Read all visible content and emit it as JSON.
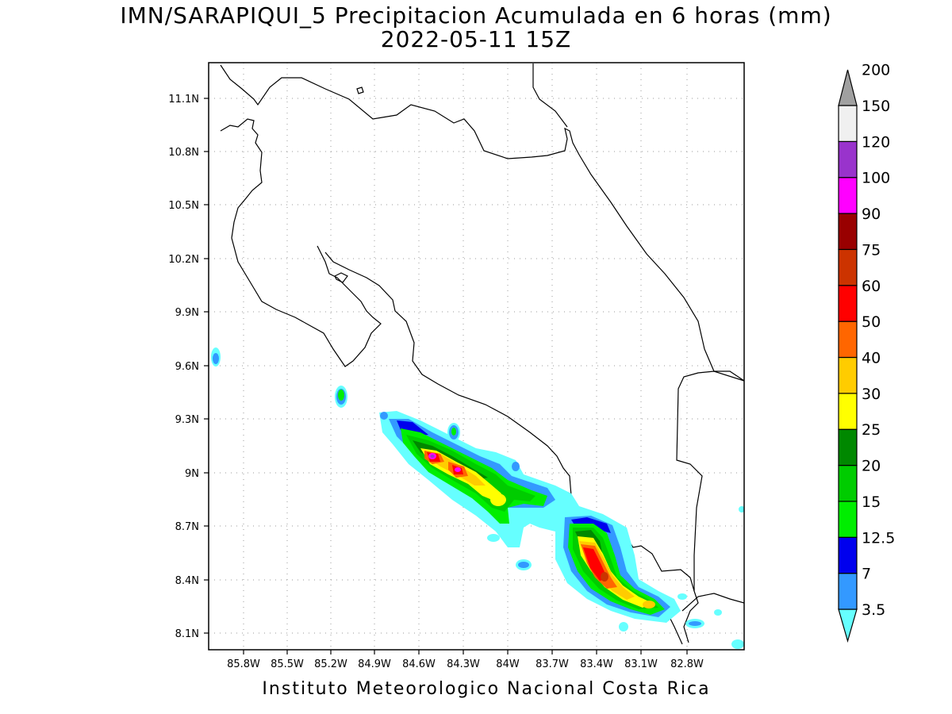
{
  "title": {
    "line1": "IMN/SARAPIQUI_5 Precipitacion Acumulada en 6 horas (mm)",
    "line2": "2022-05-11 15Z"
  },
  "footer": "Instituto Meteorologico Nacional Costa Rica",
  "map": {
    "lon_ticks": [
      "85.8W",
      "85.5W",
      "85.2W",
      "84.9W",
      "84.6W",
      "84.3W",
      "84W",
      "83.7W",
      "83.4W",
      "83.1W",
      "82.8W"
    ],
    "lat_ticks": [
      "11.1N",
      "10.8N",
      "10.5N",
      "10.2N",
      "9.9N",
      "9.6N",
      "9.3N",
      "9N",
      "8.7N",
      "8.4N",
      "8.1N"
    ],
    "gridlines": true
  },
  "colorbar": {
    "labels": [
      "3.5",
      "7",
      "12.5",
      "15",
      "20",
      "25",
      "30",
      "40",
      "50",
      "60",
      "75",
      "90",
      "100",
      "120",
      "150",
      "200"
    ],
    "colors": [
      "#66ffff",
      "#3399ff",
      "#0000ee",
      "#00ee00",
      "#00cc00",
      "#008800",
      "#ffff00",
      "#ffcc00",
      "#ff6600",
      "#ff0000",
      "#cc3300",
      "#990000",
      "#ff00ff",
      "#9933cc",
      "#f0f0f0",
      "#a0a0a0"
    ]
  }
}
